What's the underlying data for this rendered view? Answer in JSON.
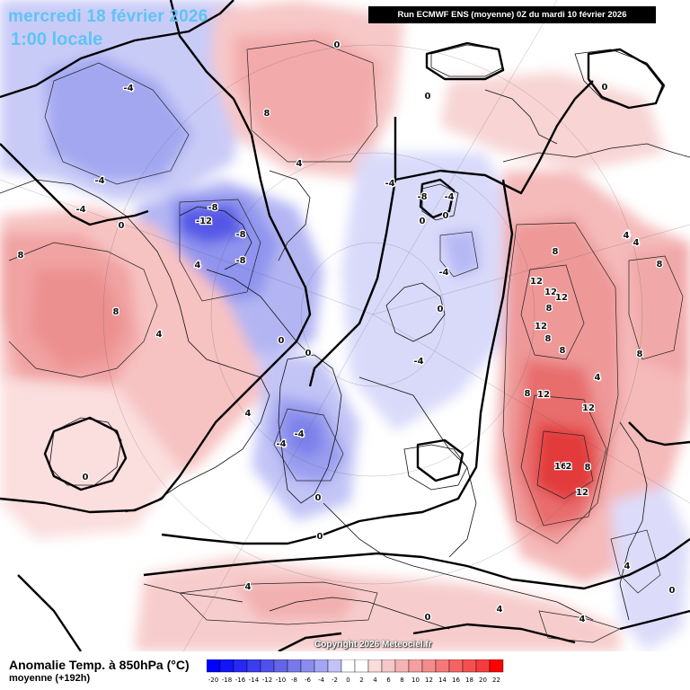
{
  "header": {
    "date": "mercredi 18 février 2026",
    "time": "1:00 locale",
    "run": "Run ECMWF ENS (moyenne) 0Z du mardi 10 février 2026"
  },
  "footer": {
    "parameter": "Anomalie Temp. à 850hPa (°C)",
    "subtitle": "moyenne   (+192h)",
    "copyright": "Copyright 2026 Meteociel.fr"
  },
  "legend": {
    "values": [
      -20,
      -18,
      -16,
      -14,
      -12,
      -10,
      -8,
      -6,
      -4,
      -2,
      0,
      2,
      4,
      6,
      8,
      10,
      12,
      14,
      16,
      18,
      20,
      22
    ],
    "labels": [
      "-20",
      "-18",
      "-16",
      "-14",
      "-12",
      "-10",
      "-8",
      "-6",
      "-4",
      "-2",
      "0",
      "2",
      "4",
      "6",
      "8",
      "10",
      "12",
      "14",
      "16",
      "18",
      "20",
      "22"
    ],
    "colors": [
      "#0000ff",
      "#1414fa",
      "#2828f5",
      "#3c3cf0",
      "#5050eb",
      "#6464e6",
      "#7878eb",
      "#8c8cf0",
      "#a5a5f5",
      "#c3c3fa",
      "#ffffff",
      "#ffffff",
      "#fadcdc",
      "#f5c8c8",
      "#f5b4b4",
      "#f5a0a0",
      "#f58c8c",
      "#f57878",
      "#f56464",
      "#f55050",
      "#f53c3c",
      "#ff0000"
    ]
  },
  "contour_labels": [
    {
      "value": "0"
    },
    {
      "value": "-4"
    },
    {
      "value": "8"
    },
    {
      "value": "-4"
    },
    {
      "value": "-4"
    },
    {
      "value": "-8"
    },
    {
      "value": "-12"
    },
    {
      "value": "-8"
    },
    {
      "value": "0"
    },
    {
      "value": "-8"
    },
    {
      "value": "8"
    },
    {
      "value": "8"
    },
    {
      "value": "4"
    },
    {
      "value": "4"
    },
    {
      "value": "0"
    },
    {
      "value": "-4"
    },
    {
      "value": "-8"
    },
    {
      "value": "-4"
    },
    {
      "value": "0"
    },
    {
      "value": "0"
    },
    {
      "value": "4"
    },
    {
      "value": "0"
    },
    {
      "value": "-4"
    },
    {
      "value": "0"
    },
    {
      "value": "0"
    },
    {
      "value": "-4"
    },
    {
      "value": "-4"
    },
    {
      "value": "0"
    },
    {
      "value": "-4"
    },
    {
      "value": "4"
    },
    {
      "value": "0"
    },
    {
      "value": "8"
    },
    {
      "value": "12"
    },
    {
      "value": "12"
    },
    {
      "value": "12"
    },
    {
      "value": "8"
    },
    {
      "value": "12"
    },
    {
      "value": "8"
    },
    {
      "value": "8"
    },
    {
      "value": "12"
    },
    {
      "value": "4"
    },
    {
      "value": "12"
    },
    {
      "value": "16"
    },
    {
      "value": "2"
    },
    {
      "value": "8"
    },
    {
      "value": "12"
    },
    {
      "value": "8"
    },
    {
      "value": "4"
    },
    {
      "value": "8"
    },
    {
      "value": "8"
    },
    {
      "value": "4"
    },
    {
      "value": "4"
    },
    {
      "value": "4"
    },
    {
      "value": "4"
    },
    {
      "value": "0"
    },
    {
      "value": "0"
    },
    {
      "value": "0"
    },
    {
      "value": "0"
    },
    {
      "value": "4"
    },
    {
      "value": "4"
    }
  ]
}
